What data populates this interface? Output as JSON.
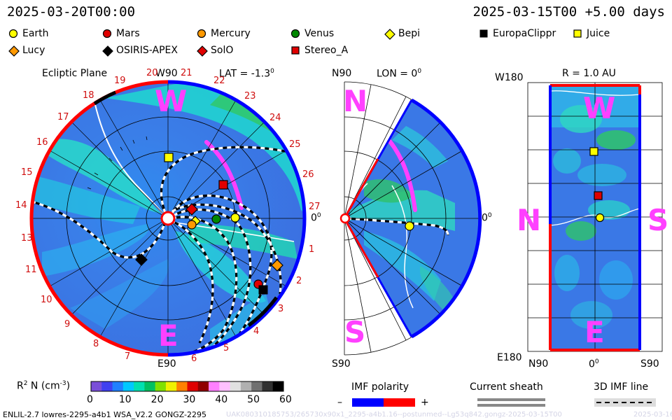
{
  "header": {
    "left_timestamp": "2025-03-20T00:00",
    "right_timestamp": "2025-03-15T00 +5.00 days"
  },
  "legend": [
    {
      "label": "Earth",
      "icon": "circle-icon",
      "color": "#ffff00"
    },
    {
      "label": "Mars",
      "icon": "circle-icon",
      "color": "#e00000"
    },
    {
      "label": "Mercury",
      "icon": "circle-icon",
      "color": "#ff9900"
    },
    {
      "label": "Venus",
      "icon": "circle-icon",
      "color": "#008800"
    },
    {
      "label": "Bepi",
      "icon": "diamond-icon",
      "color": "#ffff00"
    },
    {
      "label": "EuropaClippr",
      "icon": "square-icon",
      "color": "#000000"
    },
    {
      "label": "Juice",
      "icon": "square-icon",
      "color": "#ffff00"
    },
    {
      "label": "Lucy",
      "icon": "diamond-icon",
      "color": "#ff9900"
    },
    {
      "label": "OSIRIS-APEX",
      "icon": "diamond-icon",
      "color": "#000000"
    },
    {
      "label": "SolO",
      "icon": "diamond-icon",
      "color": "#e00000"
    },
    {
      "label": "Stereo_A",
      "icon": "square-icon",
      "color": "#e00000"
    }
  ],
  "ecliptic_panel": {
    "title": "Ecliptic Plane",
    "top_label": "W90",
    "bottom_label": "E90",
    "lat_label": "LAT = -1.3",
    "degree_sign": "0",
    "right_angle_label": "0",
    "west_letter": "W",
    "east_letter": "E",
    "sector_numbers": [
      "13",
      "14",
      "15",
      "16",
      "17",
      "18",
      "19",
      "20",
      "21",
      "22",
      "23",
      "24",
      "25",
      "26",
      "27",
      "1",
      "2",
      "3",
      "4",
      "5",
      "6",
      "7",
      "8",
      "9",
      "10",
      "11",
      "12"
    ]
  },
  "meridional_panel": {
    "top_label": "N90",
    "lon_label": "LON = 0",
    "degree_sign": "0",
    "bottom_label": "S90",
    "right_angle_label": "0",
    "north_letter": "N",
    "south_letter": "S"
  },
  "map_panel": {
    "top_left_label": "W180",
    "r_label": "R = 1.0 AU",
    "bottom_left_label": "E180",
    "x_labels": [
      "N90",
      "0",
      "S90"
    ],
    "degree_sign": "0",
    "west_letter": "W",
    "east_letter": "E",
    "north_letter": "N",
    "south_letter": "S"
  },
  "colorbar": {
    "label_prefix": "R",
    "label_sup": "2",
    "label_mid": " N (cm",
    "label_sup2": "-3",
    "label_suffix": ")",
    "ticks": [
      "0",
      "10",
      "20",
      "30",
      "40",
      "50",
      "60"
    ],
    "colors": [
      "#7a4fd8",
      "#4040f0",
      "#2080ff",
      "#00c8ff",
      "#00e0b0",
      "#00c060",
      "#80e000",
      "#f0f000",
      "#ff8000",
      "#e00000",
      "#900000",
      "#ff80ff",
      "#ffc0ff",
      "#e0e0e0",
      "#b0b0b0",
      "#707070",
      "#303030",
      "#000000"
    ]
  },
  "imf_legend": {
    "title": "IMF polarity",
    "minus": "–",
    "plus": "+",
    "negative_color": "#0000ff",
    "positive_color": "#ff0000"
  },
  "sheath_legend": {
    "title": "Current sheath"
  },
  "imf_line_legend": {
    "title": "3D IMF line"
  },
  "footer": {
    "model_info": "ENLIL-2.7 lowres-2295-a4b1 WSA_V2.2 GONGZ-2295",
    "run_info": "UAK080310185753/265730x90x1_2295-a4b1.16--postunmed--Lg53q842.gongz-2025-03-15T00",
    "run_date": "2025-03-16"
  }
}
